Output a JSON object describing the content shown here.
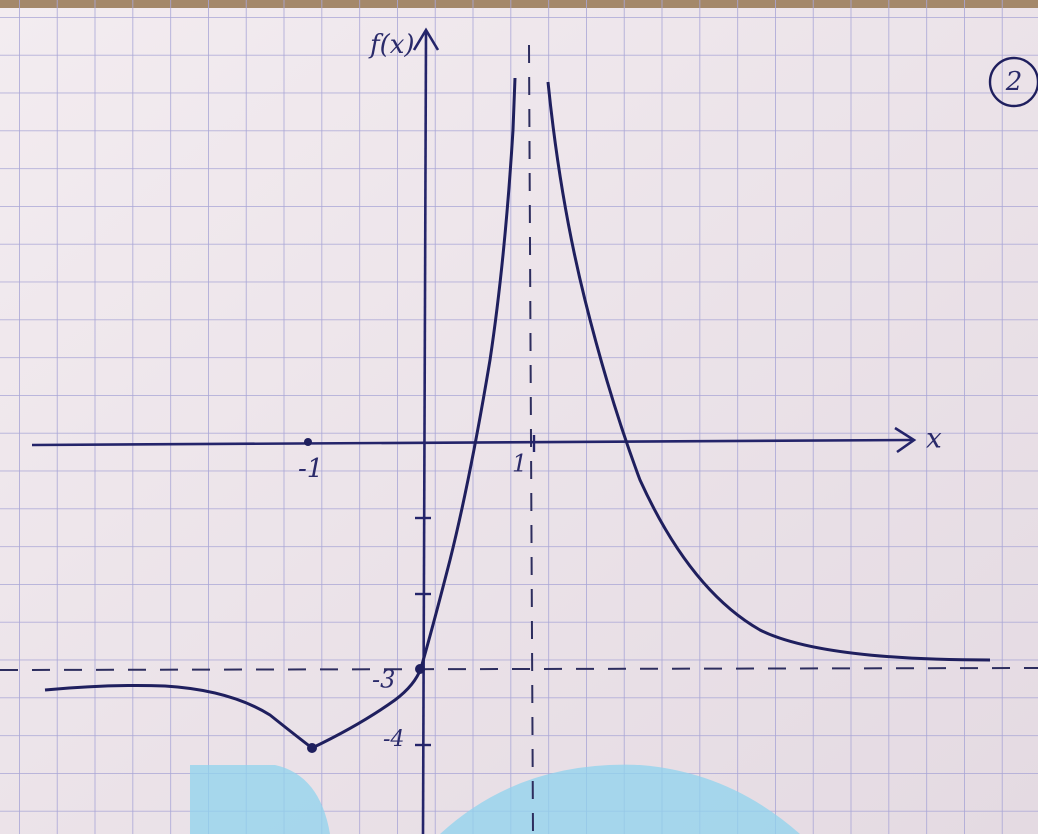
{
  "labels": {
    "y_axis": "f(x)",
    "x_axis": "x",
    "x_minus_one": "-1",
    "x_one": "1",
    "y_minus_three": "-3",
    "y_minus_four": "-4",
    "page_number": "2"
  }
}
